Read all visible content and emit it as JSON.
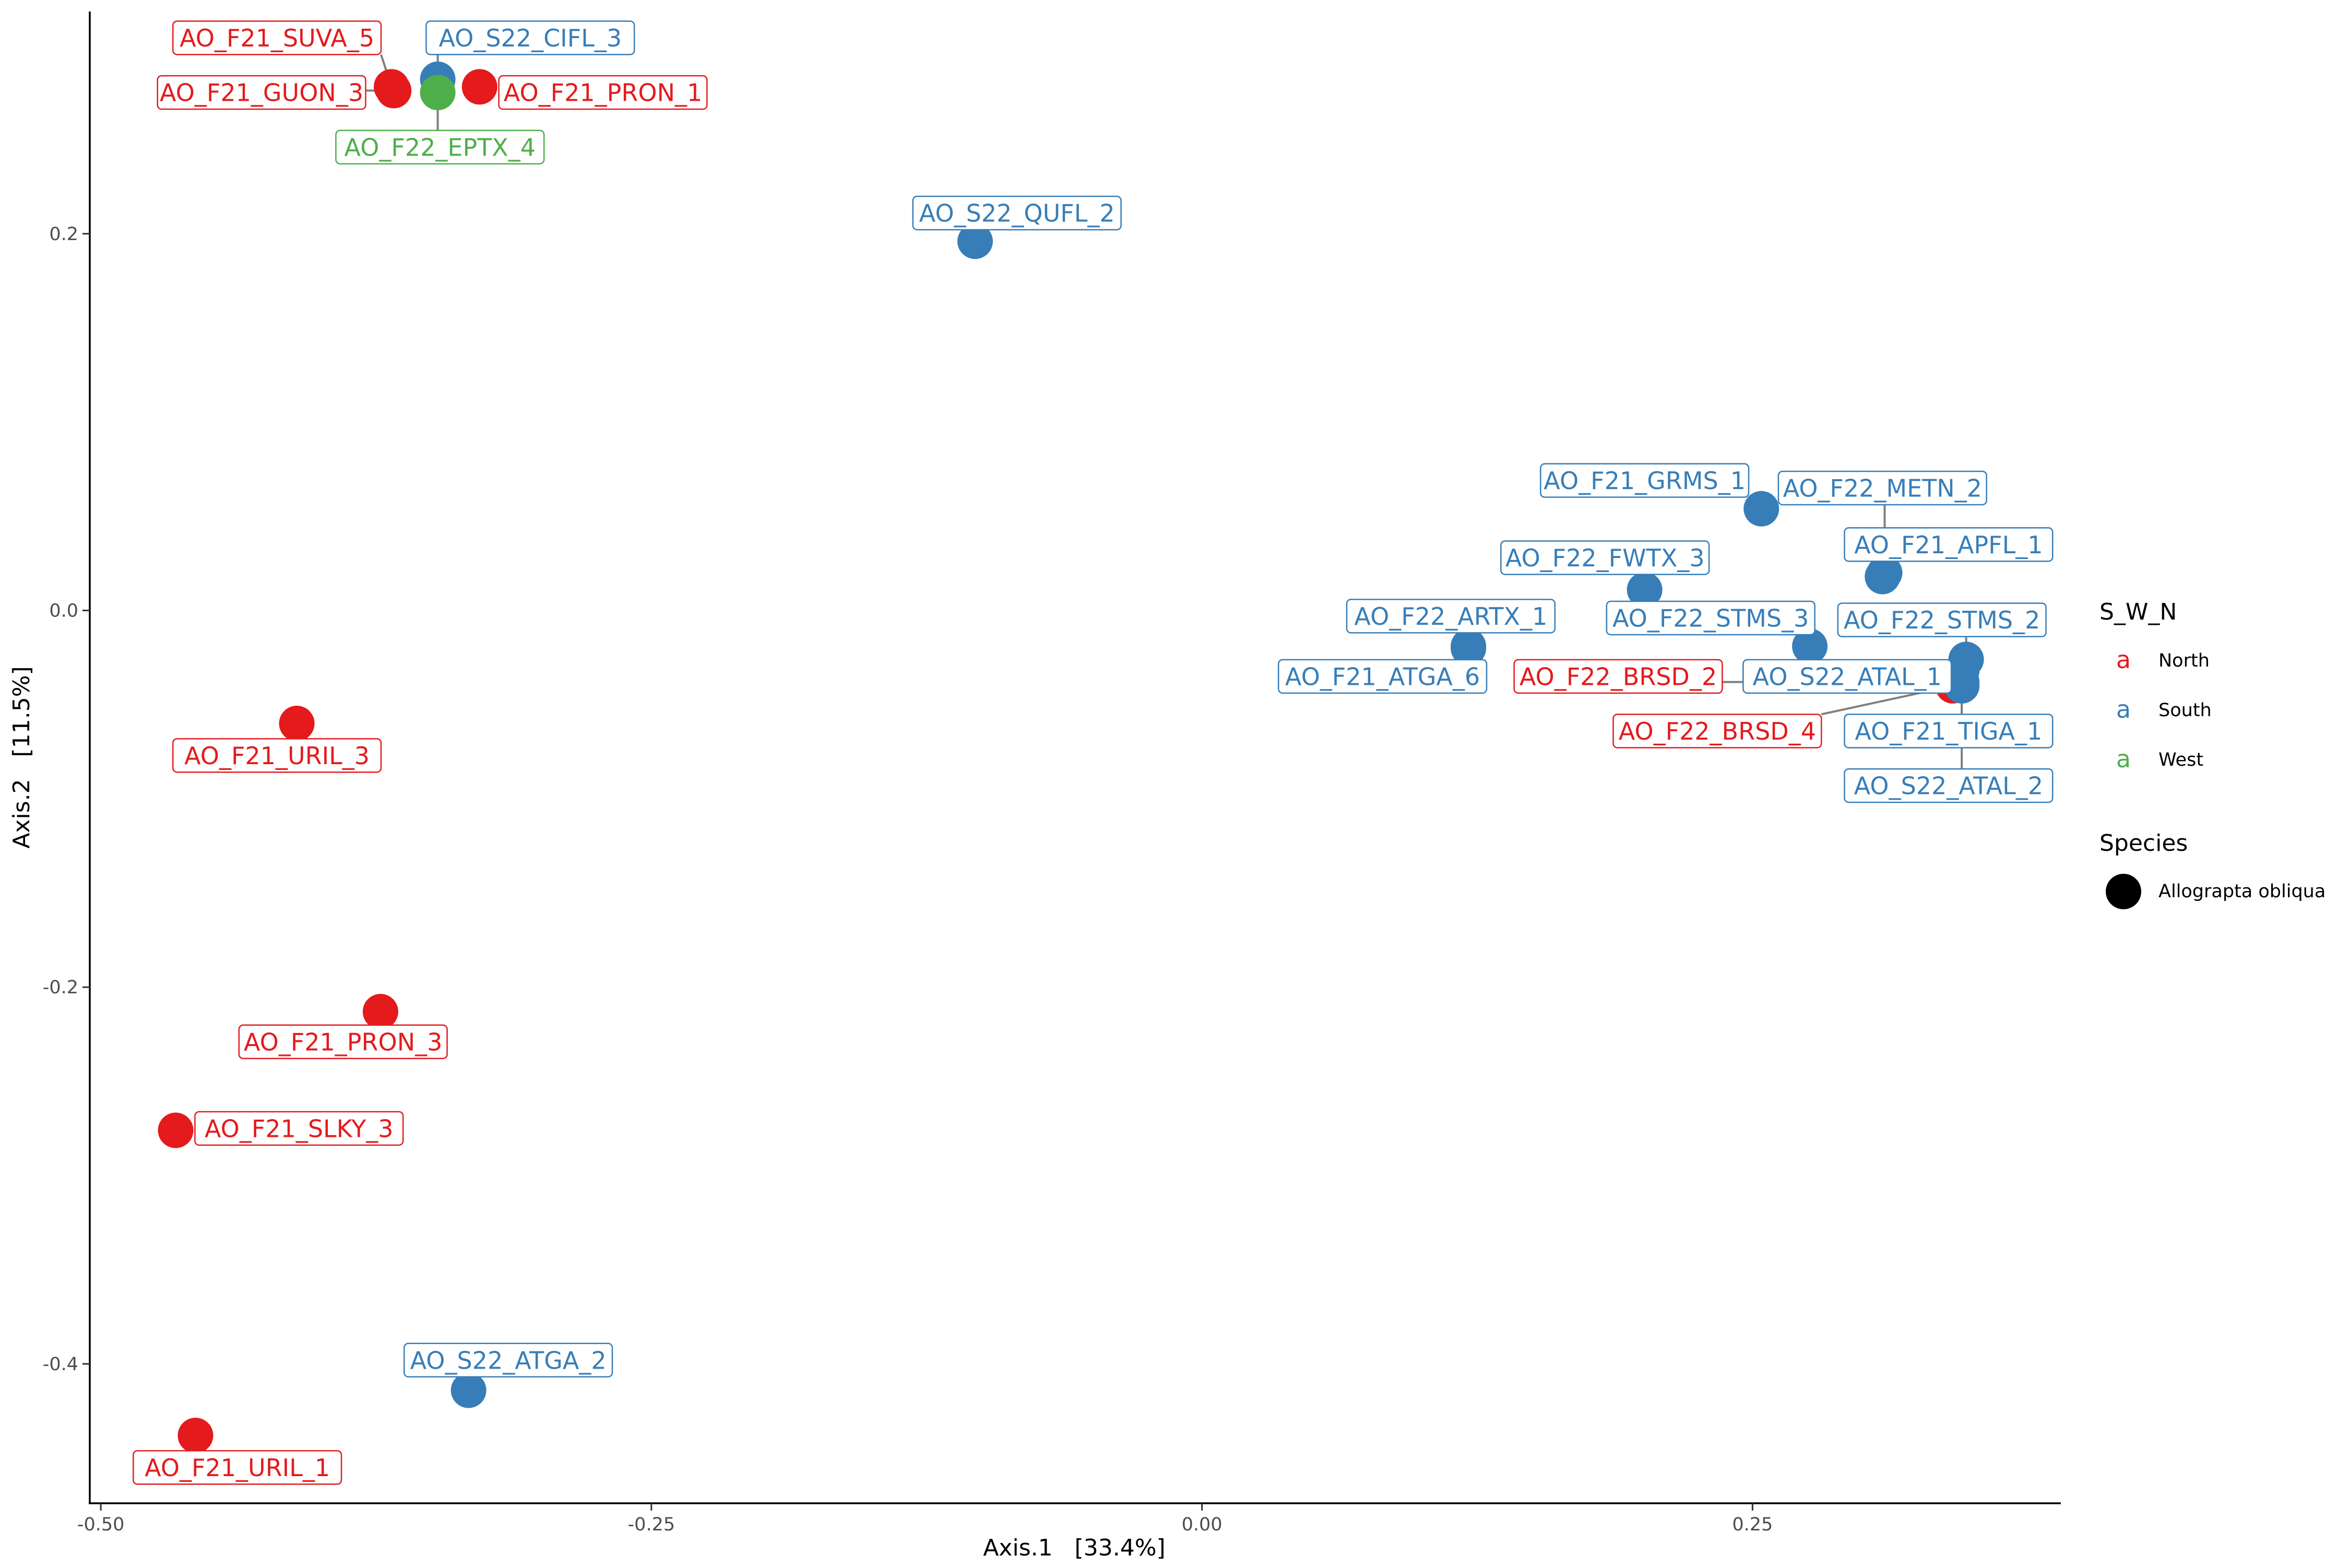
{
  "chart_data": {
    "type": "scatter",
    "title": "",
    "xlabel": "Axis.1   [33.4%]",
    "ylabel": "Axis.2   [11.5%]",
    "xlim": [
      -0.505,
      0.39
    ],
    "ylim": [
      -0.474,
      0.318
    ],
    "x_ticks": [
      -0.5,
      -0.25,
      0.0,
      0.25
    ],
    "x_tick_labels": [
      "-0.50",
      "-0.25",
      "0.00",
      "0.25"
    ],
    "y_ticks": [
      -0.4,
      -0.2,
      0.0,
      0.2
    ],
    "y_tick_labels": [
      "-0.4",
      "-0.2",
      "0.0",
      "0.2"
    ],
    "grid": false,
    "colors": {
      "North": "#E41A1C",
      "South": "#377EB8",
      "West": "#4DAF4A",
      "leader": "#7f7f7f"
    },
    "legend": {
      "placement": "right",
      "color_title": "S_W_N",
      "color_entries": [
        {
          "key": "North",
          "glyph": "a"
        },
        {
          "key": "South",
          "glyph": "a"
        },
        {
          "key": "West",
          "glyph": "a"
        }
      ],
      "shape_title": "Species",
      "shape_entries": [
        {
          "label": "Allograpta obliqua"
        }
      ]
    },
    "points": [
      {
        "label": "AO_F21_SUVA_5",
        "group": "North",
        "x": -0.368,
        "y": 0.278,
        "lx": -0.42,
        "ly": 0.304
      },
      {
        "label": "AO_S22_CIFL_3",
        "group": "South",
        "x": -0.347,
        "y": 0.282,
        "lx": -0.305,
        "ly": 0.304
      },
      {
        "label": "AO_F21_GUON_3",
        "group": "North",
        "x": -0.367,
        "y": 0.276,
        "lx": -0.427,
        "ly": 0.275
      },
      {
        "label": "AO_F21_PRON_1",
        "group": "North",
        "x": -0.328,
        "y": 0.278,
        "lx": -0.272,
        "ly": 0.275
      },
      {
        "label": "AO_F22_EPTX_4",
        "group": "West",
        "x": -0.347,
        "y": 0.275,
        "lx": -0.346,
        "ly": 0.246
      },
      {
        "label": "AO_S22_QUFL_2",
        "group": "South",
        "x": -0.103,
        "y": 0.196,
        "lx": -0.084,
        "ly": 0.211
      },
      {
        "label": "AO_F21_GRMS_1",
        "group": "South",
        "x": 0.254,
        "y": 0.054,
        "lx": 0.201,
        "ly": 0.069
      },
      {
        "label": "AO_F22_METN_2",
        "group": "South",
        "x": 0.31,
        "y": 0.02,
        "lx": 0.309,
        "ly": 0.065
      },
      {
        "label": "AO_F21_APFL_1",
        "group": "South",
        "x": 0.309,
        "y": 0.018,
        "lx": 0.339,
        "ly": 0.035
      },
      {
        "label": "AO_F22_FWTX_3",
        "group": "South",
        "x": 0.201,
        "y": 0.011,
        "lx": 0.183,
        "ly": 0.028
      },
      {
        "label": "AO_F22_ARTX_1",
        "group": "South",
        "x": 0.121,
        "y": -0.019,
        "lx": 0.113,
        "ly": -0.003
      },
      {
        "label": "AO_F22_STMS_3",
        "group": "South",
        "x": 0.276,
        "y": -0.019,
        "lx": 0.231,
        "ly": -0.004
      },
      {
        "label": "AO_F22_STMS_2",
        "group": "South",
        "x": 0.347,
        "y": -0.026,
        "lx": 0.336,
        "ly": -0.005
      },
      {
        "label": "AO_F21_ATGA_6",
        "group": "South",
        "x": 0.121,
        "y": -0.02,
        "lx": 0.082,
        "ly": -0.035
      },
      {
        "label": "AO_F22_BRSD_2",
        "group": "North",
        "x": 0.342,
        "y": -0.038,
        "lx": 0.189,
        "ly": -0.035
      },
      {
        "label": "AO_S22_ATAL_1",
        "group": "South",
        "x": 0.345,
        "y": -0.032,
        "lx": 0.293,
        "ly": -0.035
      },
      {
        "label": "AO_F22_BRSD_4",
        "group": "North",
        "x": 0.341,
        "y": -0.04,
        "lx": 0.234,
        "ly": -0.064
      },
      {
        "label": "AO_F21_TIGA_1",
        "group": "South",
        "x": 0.345,
        "y": -0.038,
        "lx": 0.339,
        "ly": -0.064
      },
      {
        "label": "AO_S22_ATAL_2",
        "group": "South",
        "x": 0.345,
        "y": -0.04,
        "lx": 0.339,
        "ly": -0.093
      },
      {
        "label": "AO_F21_URIL_3",
        "group": "North",
        "x": -0.411,
        "y": -0.06,
        "lx": -0.42,
        "ly": -0.077
      },
      {
        "label": "AO_F21_PRON_3",
        "group": "North",
        "x": -0.373,
        "y": -0.213,
        "lx": -0.39,
        "ly": -0.229
      },
      {
        "label": "AO_F21_SLKY_3",
        "group": "North",
        "x": -0.466,
        "y": -0.276,
        "lx": -0.41,
        "ly": -0.275
      },
      {
        "label": "AO_S22_ATGA_2",
        "group": "South",
        "x": -0.333,
        "y": -0.414,
        "lx": -0.315,
        "ly": -0.398
      },
      {
        "label": "AO_F21_URIL_1",
        "group": "North",
        "x": -0.457,
        "y": -0.438,
        "lx": -0.438,
        "ly": -0.455
      }
    ]
  }
}
